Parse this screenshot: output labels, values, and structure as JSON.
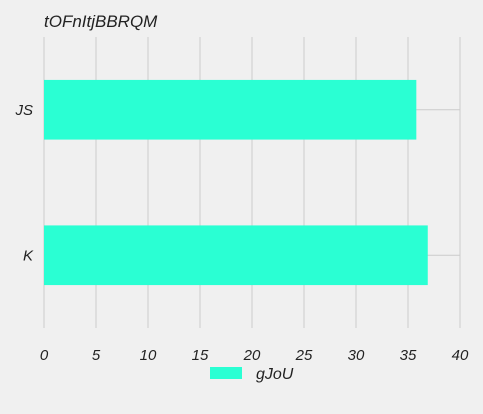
{
  "chart_data": {
    "type": "bar",
    "orientation": "horizontal",
    "title": "tOFnItjBBRQM",
    "categories": [
      "JS",
      "K"
    ],
    "series": [
      {
        "name": "gJoU",
        "values": [
          35.8,
          36.9
        ],
        "color": "#2affd3"
      }
    ],
    "xlim": [
      0,
      40
    ],
    "xticks": [
      0,
      5,
      10,
      15,
      20,
      25,
      30,
      35,
      40
    ],
    "xlabel": "",
    "ylabel": "",
    "grid": true,
    "legend": "bottom-center"
  }
}
